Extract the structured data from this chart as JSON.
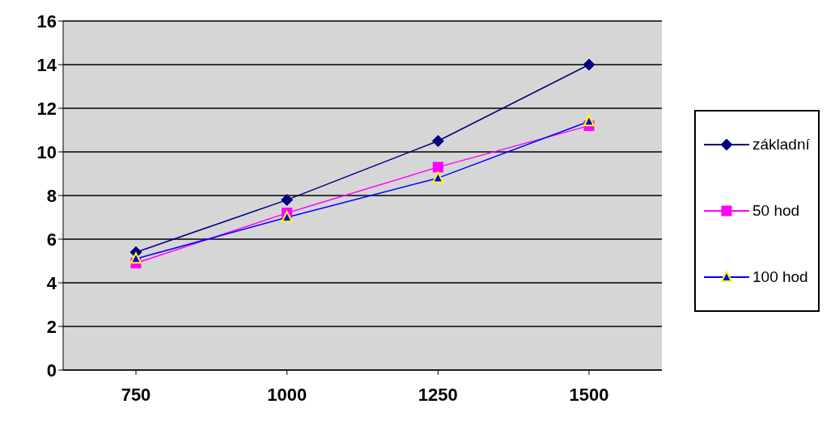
{
  "chart_data": {
    "type": "line",
    "categories": [
      "750",
      "1000",
      "1250",
      "1500"
    ],
    "series": [
      {
        "name": "základní",
        "color": "#000080",
        "marker": "diamond",
        "values": [
          5.4,
          7.8,
          10.5,
          14.0
        ]
      },
      {
        "name": "50 hod",
        "color": "#ff00ff",
        "marker": "square",
        "values": [
          4.9,
          7.2,
          9.3,
          11.2
        ]
      },
      {
        "name": "100 hod",
        "color": "#0000ff",
        "marker": "triangle",
        "values": [
          5.1,
          7.0,
          8.8,
          11.4
        ]
      }
    ],
    "ylim": [
      0,
      16
    ],
    "yticks": [
      0,
      2,
      4,
      6,
      8,
      10,
      12,
      14,
      16
    ],
    "grid": "y",
    "legend": "right"
  }
}
